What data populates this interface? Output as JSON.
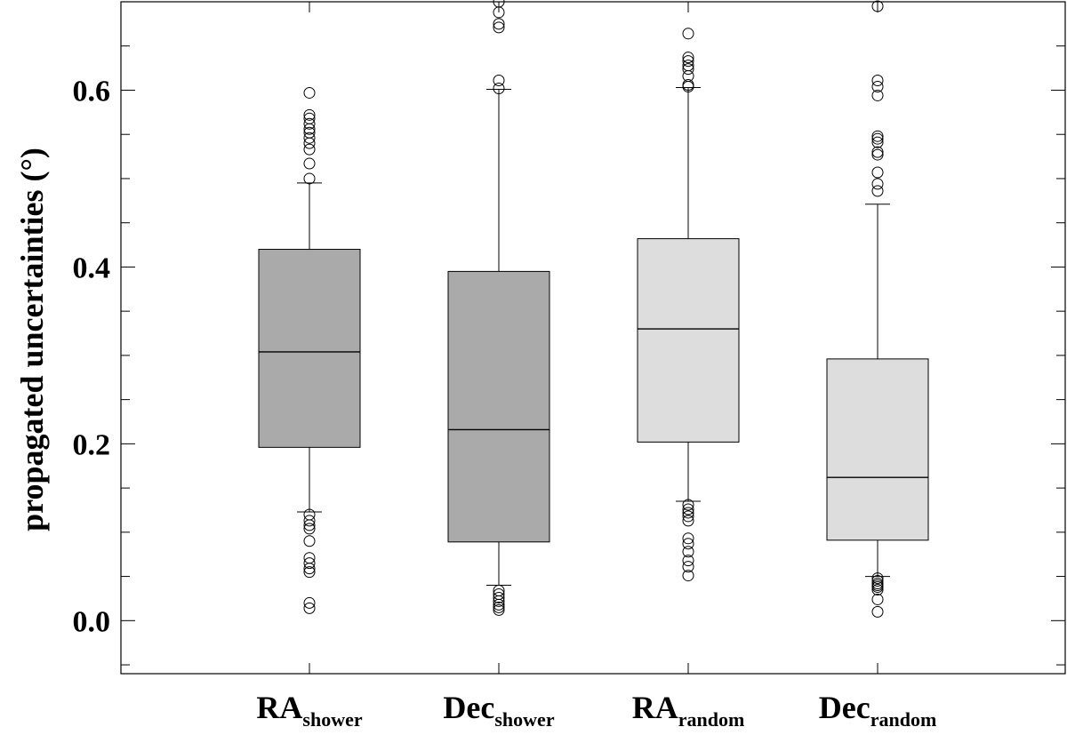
{
  "chart_data": {
    "type": "box",
    "title": "",
    "xlabel": "",
    "ylabel": "propagated uncertainties (°)",
    "ylim": [
      -0.06,
      0.7
    ],
    "yticks": [
      "0.0",
      "0.2",
      "0.4",
      "0.6"
    ],
    "ytick_values": [
      0.0,
      0.2,
      0.4,
      0.6
    ],
    "categories": [
      {
        "main": "RA",
        "sub": "shower"
      },
      {
        "main": "Dec",
        "sub": "shower"
      },
      {
        "main": "RA",
        "sub": "random"
      },
      {
        "main": "Dec",
        "sub": "random"
      }
    ],
    "boxes": [
      {
        "name": "RA shower",
        "color": "#aaaaaa",
        "whisker_low": 0.123,
        "q1": 0.196,
        "median": 0.304,
        "q3": 0.42,
        "whisker_high": 0.495,
        "outliers": [
          0.597,
          0.572,
          0.568,
          0.562,
          0.556,
          0.552,
          0.546,
          0.54,
          0.533,
          0.517,
          0.5,
          0.12,
          0.113,
          0.108,
          0.104,
          0.09,
          0.071,
          0.065,
          0.059,
          0.055,
          0.02,
          0.014
        ]
      },
      {
        "name": "Dec shower",
        "color": "#aaaaaa",
        "whisker_low": 0.04,
        "q1": 0.089,
        "median": 0.216,
        "q3": 0.395,
        "whisker_high": 0.601,
        "outliers": [
          0.7,
          0.688,
          0.675,
          0.671,
          0.611,
          0.602,
          0.034,
          0.03,
          0.026,
          0.022,
          0.018,
          0.015,
          0.012
        ]
      },
      {
        "name": "RA random",
        "color": "#dddddd",
        "whisker_low": 0.135,
        "q1": 0.202,
        "median": 0.33,
        "q3": 0.432,
        "whisker_high": 0.603,
        "outliers": [
          0.664,
          0.637,
          0.633,
          0.628,
          0.624,
          0.616,
          0.606,
          0.604,
          0.131,
          0.126,
          0.122,
          0.118,
          0.113,
          0.093,
          0.087,
          0.078,
          0.068,
          0.061,
          0.051
        ]
      },
      {
        "name": "Dec random",
        "color": "#dddddd",
        "whisker_low": 0.05,
        "q1": 0.091,
        "median": 0.162,
        "q3": 0.296,
        "whisker_high": 0.471,
        "outliers": [
          0.695,
          0.611,
          0.604,
          0.594,
          0.548,
          0.545,
          0.541,
          0.53,
          0.527,
          0.507,
          0.494,
          0.486,
          0.048,
          0.045,
          0.042,
          0.04,
          0.038,
          0.035,
          0.024,
          0.01
        ]
      }
    ]
  }
}
